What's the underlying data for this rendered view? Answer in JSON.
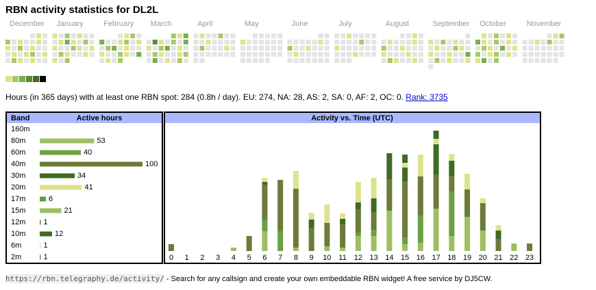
{
  "title": "RBN activity statistics for DL2L",
  "calendar": {
    "level_colors": [
      "#dde48c",
      "#a8c86a",
      "#79ad4e",
      "#5c8a36",
      "#3f6b24",
      "#000000"
    ],
    "months": [
      {
        "name": "December",
        "days": [
          null,
          null,
          null,
          null,
          0,
          1,
          0,
          2,
          0,
          1,
          0,
          0,
          1,
          0,
          1,
          0,
          2,
          0,
          1,
          0,
          0,
          0,
          1,
          0,
          1,
          2,
          0,
          1,
          0,
          2,
          1,
          0,
          1,
          0,
          0
        ]
      },
      {
        "name": "January",
        "days": [
          1,
          0,
          2,
          0,
          1,
          0,
          0,
          0,
          1,
          3,
          1,
          0,
          2,
          0,
          1,
          0,
          0,
          2,
          1,
          0,
          1,
          0,
          2,
          1,
          0,
          0,
          1,
          0,
          1,
          0,
          2
        ]
      },
      {
        "name": "February",
        "days": [
          null,
          null,
          null,
          0,
          1,
          2,
          0,
          3,
          0,
          0,
          1,
          2,
          0,
          1,
          0,
          2,
          3,
          0,
          1,
          0,
          0,
          1,
          0,
          0,
          2,
          1,
          0,
          3,
          0,
          1,
          0,
          2
        ]
      },
      {
        "name": "March",
        "days": [
          null,
          null,
          null,
          null,
          2,
          1,
          3,
          0,
          4,
          1,
          0,
          2,
          0,
          3,
          1,
          0,
          2,
          3,
          0,
          1,
          0,
          0,
          2,
          1,
          0,
          0,
          1,
          2,
          0,
          3,
          0,
          1,
          0,
          2,
          0
        ]
      },
      {
        "name": "April",
        "days": [
          0,
          1,
          0,
          0,
          2,
          0,
          0,
          0,
          0,
          1,
          0,
          0,
          0,
          0,
          0,
          2,
          0,
          0,
          0,
          1,
          0,
          0,
          0,
          0,
          0,
          0,
          0,
          0,
          0,
          0
        ]
      },
      {
        "name": "May",
        "days": [
          null,
          null,
          0,
          0,
          0,
          0,
          0,
          1,
          0,
          0,
          0,
          0,
          0,
          0,
          0,
          0,
          0,
          0,
          0,
          0,
          0,
          0,
          0,
          0,
          0,
          0,
          0,
          0,
          0,
          0,
          0,
          0,
          0
        ]
      },
      {
        "name": "June",
        "days": [
          null,
          null,
          null,
          null,
          null,
          0,
          0,
          0,
          0,
          0,
          0,
          0,
          1,
          0,
          2,
          0,
          0,
          1,
          0,
          0,
          0,
          0,
          1,
          0,
          0,
          0,
          0,
          0,
          0,
          0,
          0,
          0,
          0,
          0,
          0
        ]
      },
      {
        "name": "July",
        "days": [
          0,
          0,
          1,
          0,
          0,
          0,
          0,
          0,
          0,
          0,
          0,
          2,
          0,
          0,
          1,
          0,
          0,
          0,
          0,
          0,
          0,
          0,
          0,
          0,
          1,
          0,
          0,
          0,
          0,
          0,
          0
        ]
      },
      {
        "name": "August",
        "days": [
          null,
          null,
          null,
          0,
          0,
          1,
          0,
          0,
          1,
          0,
          0,
          0,
          1,
          0,
          2,
          0,
          0,
          1,
          0,
          0,
          0,
          1,
          0,
          0,
          0,
          1,
          0,
          0,
          0,
          2,
          1,
          0,
          0,
          1,
          0
        ]
      },
      {
        "name": "September",
        "days": [
          null,
          null,
          null,
          null,
          null,
          null,
          0,
          1,
          0,
          2,
          0,
          1,
          0,
          0,
          0,
          1,
          0,
          0,
          2,
          1,
          0,
          1,
          0,
          0,
          1,
          0,
          0,
          3,
          0,
          2,
          0,
          1,
          0,
          0,
          1,
          0
        ]
      },
      {
        "name": "October",
        "days": [
          null,
          1,
          0,
          2,
          0,
          1,
          0,
          3,
          1,
          0,
          2,
          0,
          1,
          0,
          0,
          2,
          1,
          0,
          3,
          0,
          1,
          2,
          0,
          1,
          2,
          0,
          1,
          0,
          1,
          3,
          0,
          2
        ]
      },
      {
        "name": "November",
        "days": [
          null,
          null,
          null,
          null,
          0,
          1,
          2,
          0,
          0,
          1,
          0,
          2,
          0,
          0,
          0,
          0,
          0,
          0,
          0,
          0,
          0,
          0,
          0,
          0,
          0,
          0,
          0,
          0,
          0,
          0,
          0,
          0,
          0,
          0
        ]
      }
    ]
  },
  "summary": "Hours (in 365 days) with at least one RBN spot: 284 (0.8h / day). EU: 274, NA: 28, AS: 2, SA: 0, AF: 2, OC: 0.",
  "rank_link": "Rank: 3735",
  "bands_chart": {
    "type": "bar",
    "header_band": "Band",
    "header_hours": "Active hours",
    "categories": [
      "160m",
      "80m",
      "60m",
      "40m",
      "30m",
      "20m",
      "17m",
      "15m",
      "12m",
      "10m",
      "6m",
      "2m"
    ],
    "values": [
      null,
      53,
      40,
      100,
      34,
      41,
      6,
      21,
      1,
      12,
      1,
      1
    ],
    "colors": [
      "#9dbf63",
      "#9dbf63",
      "#6ba043",
      "#6b7b3a",
      "#3f6b24",
      "#dde38c",
      "#5f9e3e",
      "#9dbf63",
      "#6b7b3a",
      "#3f6b24",
      "#dde38c",
      "#5f9e3e"
    ],
    "xlim": [
      0,
      100
    ]
  },
  "activity_chart": {
    "type": "bar",
    "title": "Activity vs. Time (UTC)",
    "categories": [
      "0",
      "1",
      "2",
      "3",
      "4",
      "5",
      "6",
      "7",
      "8",
      "9",
      "10",
      "11",
      "12",
      "13",
      "14",
      "15",
      "16",
      "17",
      "18",
      "19",
      "20",
      "21",
      "22",
      "23"
    ],
    "stacked": true,
    "ylim": [
      0,
      180
    ],
    "series": [
      {
        "name": "80m",
        "color": "#9dbf63",
        "values": [
          0,
          0,
          0,
          0,
          5,
          0,
          29,
          0,
          5,
          0,
          7,
          5,
          22,
          22,
          59,
          10,
          12,
          62,
          22,
          50,
          30,
          0,
          11,
          0
        ]
      },
      {
        "name": "60m",
        "color": "#6ba043",
        "values": [
          0,
          0,
          0,
          0,
          0,
          0,
          17,
          29,
          0,
          0,
          0,
          0,
          5,
          9,
          0,
          10,
          40,
          0,
          65,
          0,
          0,
          0,
          0,
          0
        ]
      },
      {
        "name": "40m",
        "color": "#6b7b3a",
        "values": [
          10,
          0,
          0,
          0,
          0,
          22,
          51,
          75,
          86,
          34,
          34,
          34,
          34,
          26,
          46,
          82,
          57,
          50,
          23,
          40,
          40,
          18,
          0,
          11
        ]
      },
      {
        "name": "30m",
        "color": "#3f6b24",
        "values": [
          0,
          0,
          0,
          0,
          0,
          0,
          4,
          0,
          0,
          12,
          0,
          8,
          10,
          20,
          15,
          20,
          0,
          44,
          22,
          0,
          0,
          12,
          0,
          0
        ]
      },
      {
        "name": "20m",
        "color": "#dde38c",
        "values": [
          0,
          0,
          0,
          0,
          0,
          0,
          6,
          0,
          26,
          10,
          27,
          8,
          30,
          30,
          0,
          7,
          32,
          8,
          10,
          23,
          7,
          8,
          0,
          0
        ]
      },
      {
        "name": "10m",
        "color": "#3f6b24",
        "values": [
          0,
          0,
          0,
          0,
          0,
          0,
          0,
          0,
          0,
          0,
          0,
          0,
          0,
          0,
          23,
          12,
          0,
          12,
          0,
          0,
          0,
          0,
          0,
          0
        ]
      }
    ]
  },
  "footer_url": "https://rbn.telegraphy.de/activity/",
  "footer_text": " - Search for any callsign and create your own embeddable RBN widget! A free service by DJ5CW."
}
